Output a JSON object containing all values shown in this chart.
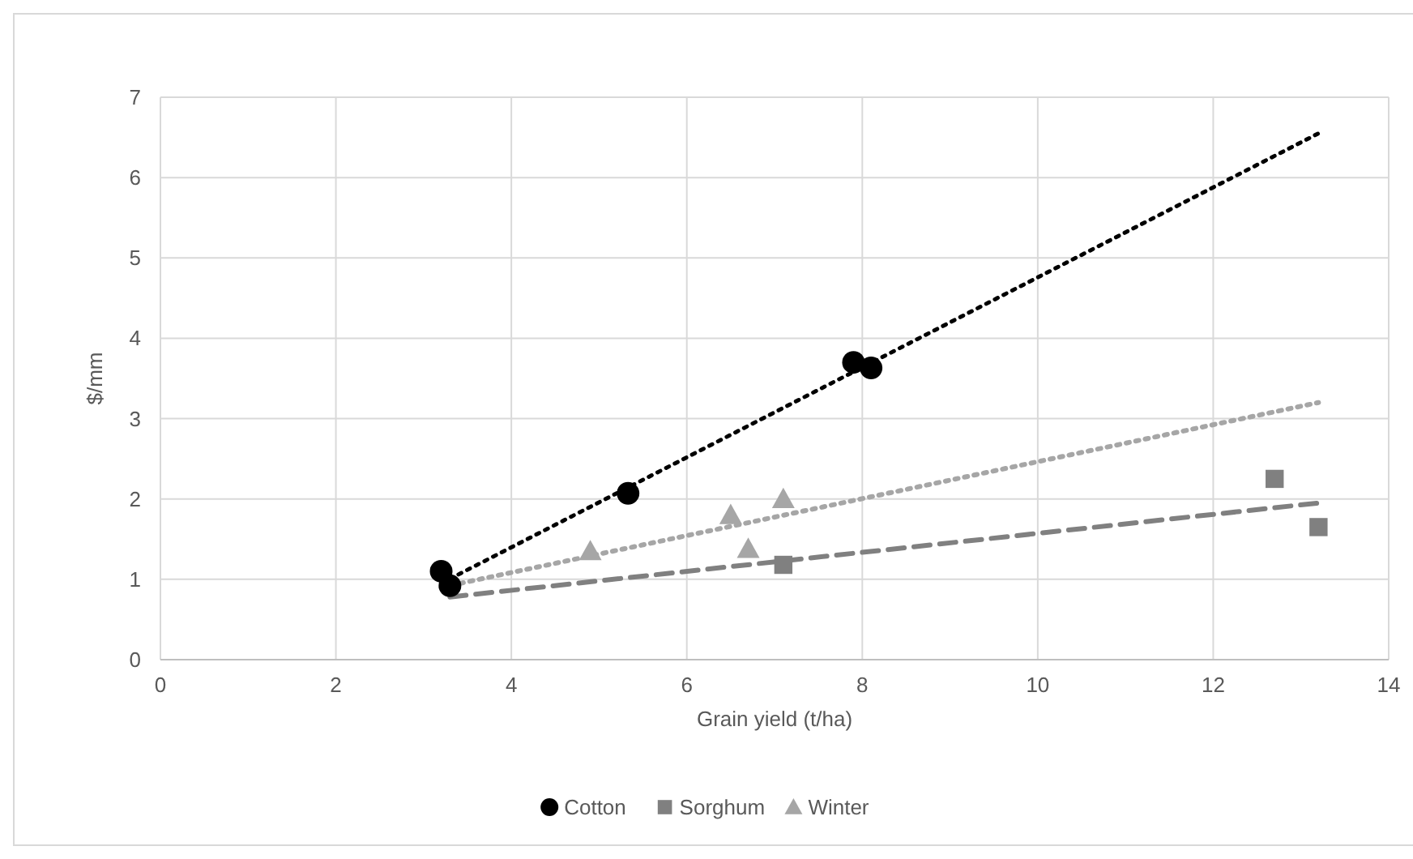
{
  "chart_data": {
    "type": "scatter",
    "xlabel": "Grain yield (t/ha)",
    "ylabel": "$/mm",
    "xlim": [
      0,
      14
    ],
    "xticks": [
      0,
      2,
      4,
      6,
      8,
      10,
      12,
      14
    ],
    "ylim": [
      0,
      7
    ],
    "yticks": [
      0,
      1,
      2,
      3,
      4,
      5,
      6,
      7
    ],
    "grid": true,
    "legend": "bottom",
    "series": [
      {
        "name": "Cotton",
        "color": "#000000",
        "marker": "circle",
        "x": [
          3.2,
          3.3,
          5.33,
          7.9,
          8.1
        ],
        "values": [
          1.1,
          0.92,
          2.07,
          3.7,
          3.63
        ]
      },
      {
        "name": "Sorghum",
        "color": "#808080",
        "marker": "square",
        "x": [
          7.1,
          12.7,
          13.2
        ],
        "values": [
          1.18,
          2.25,
          1.65
        ]
      },
      {
        "name": "Winter",
        "color": "#a6a6a6",
        "marker": "triangle",
        "x": [
          4.9,
          6.5,
          6.7,
          7.1
        ],
        "values": [
          1.35,
          1.8,
          1.38,
          2.0
        ]
      },
      {
        "type": "line",
        "color": "#000000",
        "line_style": "dotted",
        "x": [
          3.2,
          13.2
        ],
        "values": [
          0.95,
          6.55
        ]
      },
      {
        "type": "line",
        "color": "#808080",
        "line_style": "dashed",
        "x": [
          3.3,
          13.2
        ],
        "values": [
          0.78,
          1.95
        ]
      },
      {
        "type": "line",
        "color": "#a6a6a6",
        "line_style": "dotted",
        "x": [
          3.2,
          13.2
        ],
        "values": [
          0.9,
          3.2
        ]
      }
    ]
  }
}
